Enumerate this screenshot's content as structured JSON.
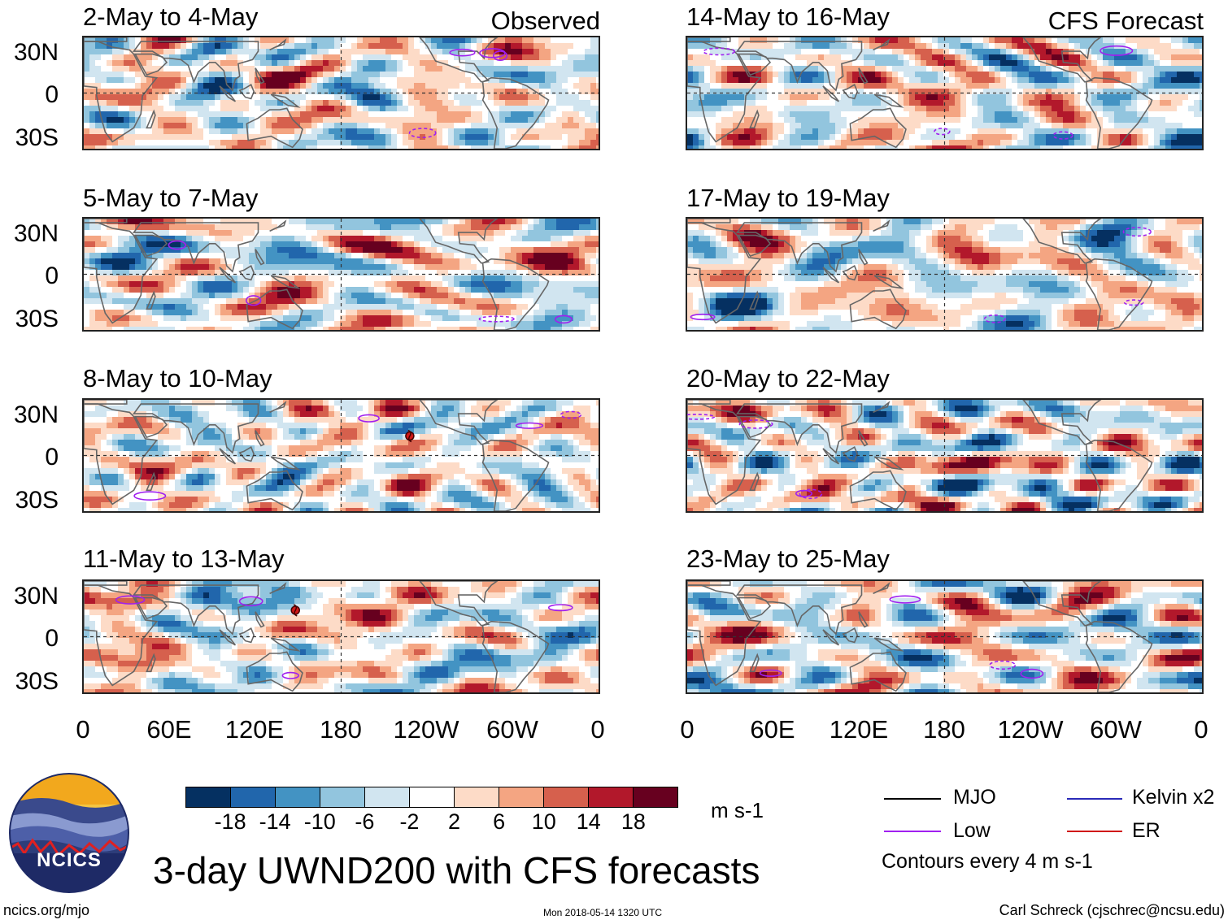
{
  "panels": [
    {
      "title": "2-May to 4-May",
      "corner": "Observed",
      "seed": 1,
      "storms": []
    },
    {
      "title": "14-May to 16-May",
      "corner": "CFS Forecast",
      "seed": 2,
      "storms": []
    },
    {
      "title": "5-May to 7-May",
      "corner": "",
      "seed": 3,
      "storms": []
    },
    {
      "title": "17-May to 19-May",
      "corner": "",
      "seed": 4,
      "storms": []
    },
    {
      "title": "8-May to 10-May",
      "corner": "",
      "seed": 5,
      "storms": [
        {
          "lon": 228,
          "lat": 14
        }
      ]
    },
    {
      "title": "20-May to 22-May",
      "corner": "",
      "seed": 6,
      "storms": []
    },
    {
      "title": "11-May to 13-May",
      "corner": "",
      "seed": 7,
      "storms": [
        {
          "lon": 148,
          "lat": 19
        }
      ]
    },
    {
      "title": "23-May to 25-May",
      "corner": "",
      "seed": 8,
      "storms": []
    }
  ],
  "lat_labels": [
    "30N",
    "0",
    "30S"
  ],
  "lon_labels": [
    "0",
    "60E",
    "120E",
    "180",
    "120W",
    "60W",
    "0"
  ],
  "colorbar": {
    "colors": [
      "#053061",
      "#2166ac",
      "#4393c3",
      "#92c5de",
      "#d1e5f0",
      "#ffffff",
      "#fddbc7",
      "#f4a582",
      "#d6604d",
      "#b2182b",
      "#67001f"
    ],
    "labels": [
      "-18",
      "-14",
      "-10",
      "-6",
      "-2",
      "2",
      "6",
      "10",
      "14",
      "18"
    ],
    "units": "m s-1"
  },
  "legend": {
    "items": [
      {
        "label": "MJO",
        "color": "#000000"
      },
      {
        "label": "Kelvin x2",
        "color": "#2a2ab8"
      },
      {
        "label": "Low",
        "color": "#a020f0"
      },
      {
        "label": "ER",
        "color": "#d01818"
      }
    ],
    "note": "Contours every 4 m s-1"
  },
  "logo": {
    "text": "NCICS"
  },
  "title": "3-day UWND200 with CFS forecasts",
  "footer": {
    "left": "ncics.org/mjo",
    "center": "Mon 2018-05-14 1320 UTC",
    "right": "Carl Schreck (cjschrec@ncsu.edu)"
  }
}
